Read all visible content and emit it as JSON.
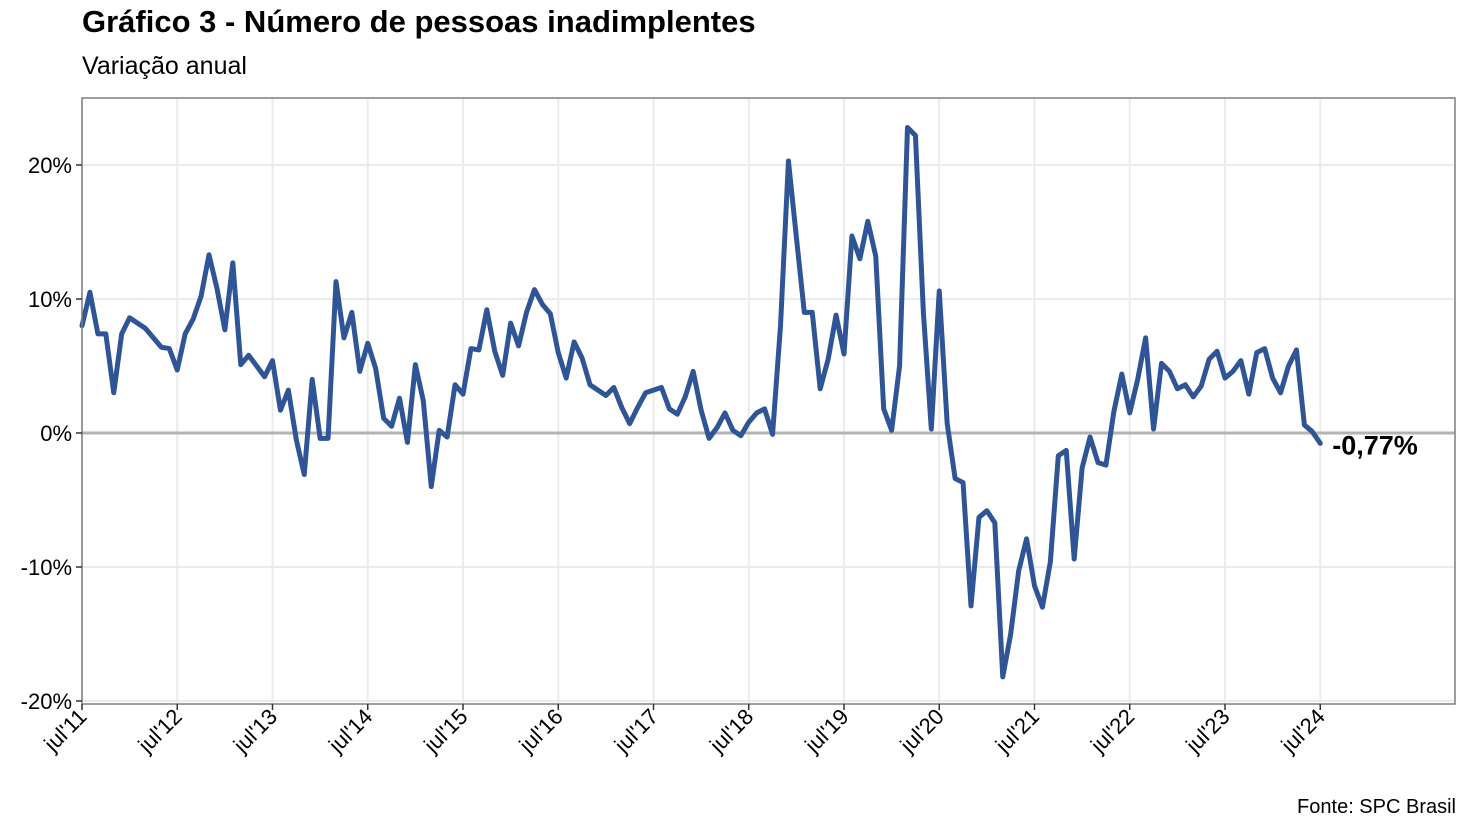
{
  "title": "Gráfico 3 - Número de pessoas inadimplentes",
  "subtitle": "Variação anual",
  "source": "Fonte: SPC Brasil",
  "colors": {
    "line": "#2f5597",
    "zero_line": "#b3b3b3",
    "grid": "#ebebeb",
    "frame": "#7f7f7f"
  },
  "chart_data": {
    "type": "line",
    "ylim": [
      -20,
      25
    ],
    "y_ticks": [
      20,
      10,
      0,
      -10,
      -20
    ],
    "y_tick_labels": [
      "20%",
      "10%",
      "0%",
      "-10%",
      "-20%"
    ],
    "x_tick_labels": [
      "jul'11",
      "jul'12",
      "jul'13",
      "jul'14",
      "jul'15",
      "jul'16",
      "jul'17",
      "jul'18",
      "jul'19",
      "jul'20",
      "jul'21",
      "jul'22",
      "jul'23",
      "jul'24"
    ],
    "end_label": "-0,77%",
    "grid": true,
    "series": [
      {
        "values": [
          8.0,
          10.5,
          7.4,
          7.4,
          3.0,
          7.4,
          8.6,
          8.2,
          7.8,
          7.1,
          6.4,
          6.3,
          4.7,
          7.4,
          8.5,
          10.2,
          13.3,
          10.8,
          7.7,
          12.7,
          5.1,
          5.8,
          5.0,
          4.2,
          5.4,
          1.7,
          3.2,
          -0.5,
          -3.1,
          4.0,
          -0.4,
          -0.4,
          11.3,
          7.1,
          9.0,
          4.6,
          6.7,
          4.8,
          1.1,
          0.5,
          2.6,
          -0.7,
          5.1,
          2.4,
          -4.0,
          0.2,
          -0.3,
          3.6,
          2.9,
          6.3,
          6.2,
          9.2,
          6.1,
          4.3,
          8.2,
          6.5,
          9.0,
          10.7,
          9.6,
          8.9,
          6.0,
          4.1,
          6.8,
          5.6,
          3.6,
          3.2,
          2.8,
          3.4,
          1.9,
          0.7,
          1.9,
          3.0,
          3.2,
          3.4,
          1.8,
          1.4,
          2.7,
          4.6,
          1.7,
          -0.4,
          0.4,
          1.5,
          0.2,
          -0.2,
          0.8,
          1.5,
          1.8,
          -0.1,
          8.0,
          20.3,
          14.6,
          9.0,
          9.0,
          3.3,
          5.5,
          8.8,
          5.9,
          14.7,
          13.0,
          15.8,
          13.2,
          1.8,
          0.2,
          5.0,
          22.8,
          22.2,
          9.0,
          0.3,
          10.6,
          0.7,
          -3.4,
          -3.7,
          -12.9,
          -6.3,
          -5.8,
          -6.7,
          -18.2,
          -15.0,
          -10.3,
          -7.9,
          -11.4,
          -13.0,
          -9.6,
          -1.7,
          -1.3,
          -9.4,
          -2.6,
          -0.3,
          -2.2,
          -2.4,
          1.6,
          4.4,
          1.5,
          4.0,
          7.1,
          0.3,
          5.2,
          4.6,
          3.3,
          3.6,
          2.7,
          3.5,
          5.5,
          6.1,
          4.1,
          4.6,
          5.4,
          2.9,
          6.0,
          6.3,
          4.1,
          3.0,
          5.0,
          6.2,
          0.6,
          0.1,
          -0.77
        ]
      }
    ]
  }
}
